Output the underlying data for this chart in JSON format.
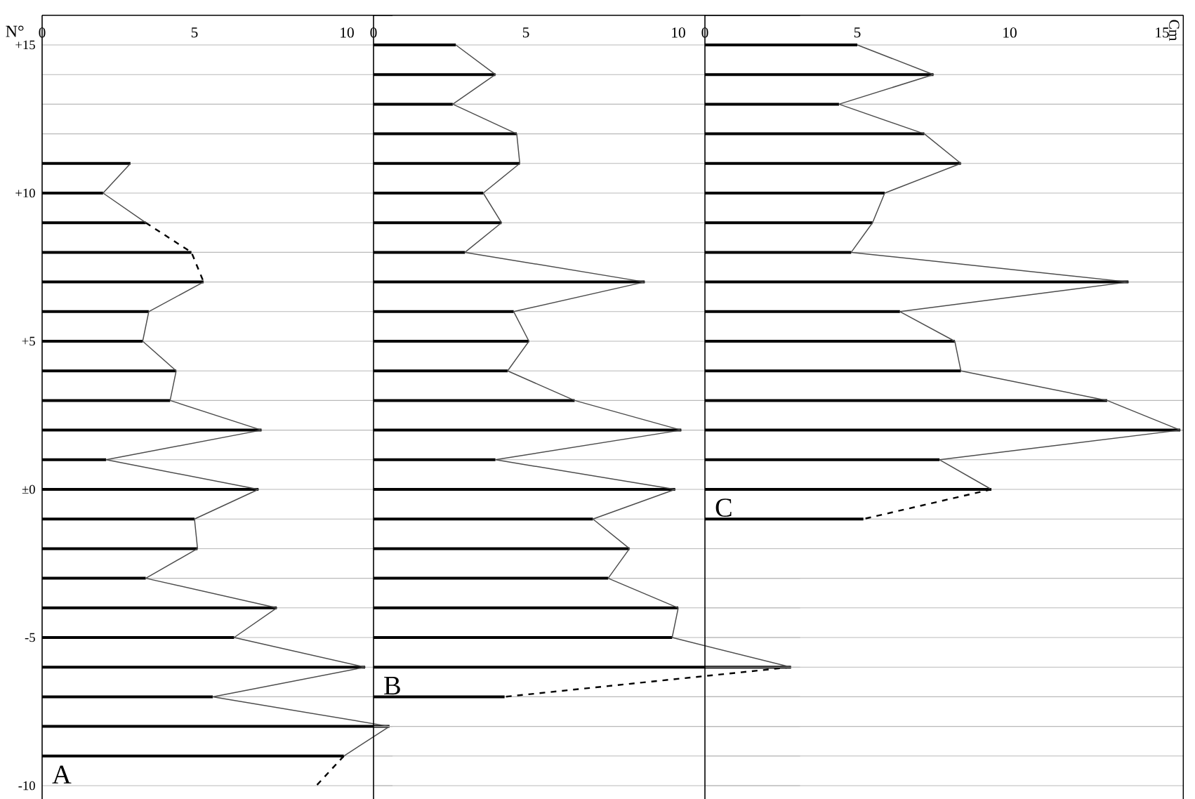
{
  "chart_data": [
    {
      "type": "bar",
      "orientation": "horizontal",
      "title": "A",
      "ylabel": "N°",
      "grid": "y",
      "categories": [
        "+15",
        null,
        null,
        null,
        null,
        "+10",
        null,
        null,
        null,
        null,
        "+5",
        null,
        null,
        null,
        null,
        "±0",
        null,
        null,
        null,
        null,
        "-5",
        null,
        null,
        null,
        null,
        "-10"
      ],
      "xlim": [
        0,
        11.5
      ],
      "xticks": [
        0,
        5,
        10
      ],
      "series": [
        {
          "color": "#000000",
          "values": [
            null,
            null,
            null,
            null,
            2.9,
            2.0,
            3.4,
            4.9,
            5.3,
            3.5,
            3.3,
            4.4,
            4.2,
            7.2,
            2.1,
            7.1,
            5.0,
            5.1,
            3.4,
            7.7,
            6.3,
            10.6,
            5.6,
            11.4,
            9.9,
            null
          ]
        },
        {
          "type": "line",
          "color": "#4c4c4c",
          "line_style": "solid",
          "values": [
            null,
            null,
            null,
            null,
            2.9,
            2.0,
            3.4,
            null,
            5.3,
            3.5,
            3.3,
            4.4,
            4.2,
            7.2,
            2.1,
            7.1,
            5.0,
            5.1,
            3.4,
            7.7,
            6.3,
            10.6,
            5.6,
            11.4,
            9.9,
            null
          ]
        },
        {
          "type": "line",
          "color": "#000000",
          "line_style": "dashed",
          "values": [
            null,
            null,
            null,
            null,
            null,
            null,
            3.4,
            4.9,
            5.3,
            null,
            null,
            null,
            null,
            null,
            null,
            null,
            null,
            null,
            null,
            null,
            null,
            null,
            null,
            null,
            9.9,
            9.0
          ]
        }
      ]
    },
    {
      "type": "bar",
      "orientation": "horizontal",
      "title": "B",
      "grid": "y",
      "categories": [
        null,
        null,
        null,
        null,
        null,
        null,
        null,
        null,
        null,
        null,
        null,
        null,
        null,
        null,
        null,
        null,
        null,
        null,
        null,
        null,
        null,
        null,
        null,
        null,
        null,
        null
      ],
      "xlim": [
        0,
        14
      ],
      "xticks": [
        0,
        5,
        10
      ],
      "series": [
        {
          "color": "#000000",
          "values": [
            2.7,
            4.0,
            2.6,
            4.7,
            4.8,
            3.6,
            4.2,
            3.0,
            8.9,
            4.6,
            5.1,
            4.4,
            6.6,
            10.1,
            4.0,
            9.9,
            7.2,
            8.4,
            7.7,
            10.0,
            9.8,
            13.7,
            4.3,
            null,
            null,
            null
          ]
        },
        {
          "type": "line",
          "color": "#4c4c4c",
          "line_style": "solid",
          "values": [
            2.7,
            4.0,
            2.6,
            4.7,
            4.8,
            3.6,
            4.2,
            3.0,
            8.9,
            4.6,
            5.1,
            4.4,
            6.6,
            10.1,
            4.0,
            9.9,
            7.2,
            8.4,
            7.7,
            10.0,
            9.8,
            13.7,
            null,
            null,
            null,
            null
          ]
        },
        {
          "type": "line",
          "color": "#000000",
          "line_style": "dashed",
          "values": [
            null,
            null,
            null,
            null,
            null,
            null,
            null,
            null,
            null,
            null,
            null,
            null,
            null,
            null,
            null,
            null,
            null,
            null,
            null,
            null,
            null,
            13.7,
            4.3,
            null,
            null,
            null
          ]
        }
      ]
    },
    {
      "type": "bar",
      "orientation": "horizontal",
      "title": "C",
      "annotations": [
        "Cm"
      ],
      "grid": "y",
      "categories": [
        null,
        null,
        null,
        null,
        null,
        null,
        null,
        null,
        null,
        null,
        null,
        null,
        null,
        null,
        null,
        null,
        null,
        null,
        null,
        null,
        null,
        null,
        null,
        null,
        null,
        null
      ],
      "xlim": [
        0,
        15.7
      ],
      "xticks": [
        0,
        5,
        10,
        15
      ],
      "series": [
        {
          "color": "#000000",
          "values": [
            5.0,
            7.5,
            4.4,
            7.2,
            8.4,
            5.9,
            5.5,
            4.8,
            13.9,
            6.4,
            8.2,
            8.4,
            13.2,
            15.6,
            7.7,
            9.4,
            5.2,
            null,
            null,
            null,
            null,
            null,
            null,
            null,
            null,
            null
          ]
        },
        {
          "type": "line",
          "color": "#4c4c4c",
          "line_style": "solid",
          "values": [
            5.0,
            7.5,
            4.4,
            7.2,
            8.4,
            5.9,
            5.5,
            4.8,
            13.9,
            6.4,
            8.2,
            8.4,
            13.2,
            15.6,
            7.7,
            9.4,
            null,
            null,
            null,
            null,
            null,
            null,
            null,
            null,
            null,
            null
          ]
        },
        {
          "type": "line",
          "color": "#000000",
          "line_style": "dashed",
          "values": [
            null,
            null,
            null,
            null,
            null,
            null,
            null,
            null,
            null,
            null,
            null,
            null,
            null,
            null,
            null,
            9.4,
            5.2,
            null,
            null,
            null,
            null,
            null,
            null,
            null,
            null,
            null
          ]
        }
      ]
    }
  ]
}
